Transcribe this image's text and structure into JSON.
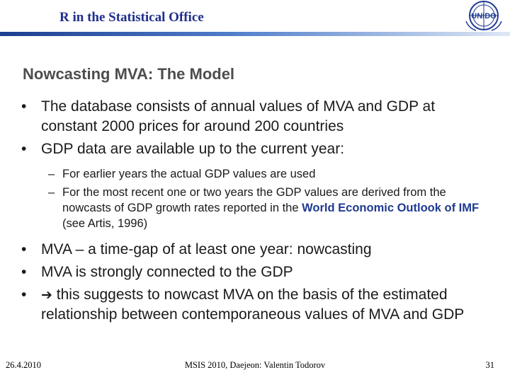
{
  "header": {
    "title": "R in the Statistical Office",
    "logo_text": "UNIDO"
  },
  "slide": {
    "title": "Nowcasting MVA: The Model",
    "bullet1": "The database consists of annual values of MVA and GDP at constant 2000 prices for around 200 countries",
    "bullet2": "GDP data are available up to the current year:",
    "sub1": "For earlier years the actual GDP values are used",
    "sub2_pre": "For the most recent one or two years the GDP values are derived from the nowcasts of GDP growth rates reported in the ",
    "sub2_highlight": "World Economic Outlook of IMF",
    "sub2_post": " (see Artis, 1996)",
    "bullet3": "MVA – a time-gap of at least one year: nowcasting",
    "bullet4": "MVA is strongly connected to the GDP",
    "bullet5_arrow": "➔",
    "bullet5": "this suggests to nowcast MVA on the basis of the estimated relationship between contemporaneous values of MVA and GDP",
    "bullet_symbol": "•",
    "dash_symbol": "–"
  },
  "footer": {
    "date": "26.4.2010",
    "conference": "MSIS 2010, Daejeon: Valentin Todorov",
    "page": "31"
  },
  "colors": {
    "header_blue": "#1f2f8c",
    "highlight_blue": "#1f3a93",
    "title_gray": "#4d4d4d"
  }
}
